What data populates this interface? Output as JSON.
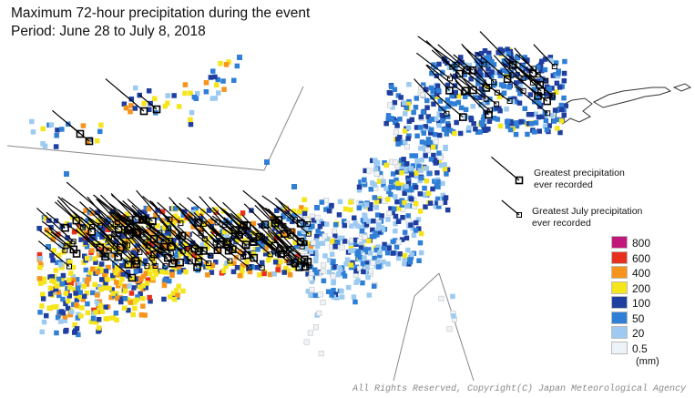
{
  "title_line1": "Maximum 72-hour precipitation during the event",
  "title_line2": "Period: June 28 to July 8, 2018",
  "marker_notes": {
    "greatest_line1": "Greatest precipitation",
    "greatest_line2": "ever recorded",
    "july_line1": "Greatest July precipitation",
    "july_line2": "ever recorded"
  },
  "legend": {
    "items": [
      {
        "label": "800",
        "color": "#c2177a"
      },
      {
        "label": "600",
        "color": "#e8301e"
      },
      {
        "label": "400",
        "color": "#f7941d"
      },
      {
        "label": "200",
        "color": "#f5e51b"
      },
      {
        "label": "100",
        "color": "#1f3fa0"
      },
      {
        "label": "50",
        "color": "#2f7fd6"
      },
      {
        "label": "20",
        "color": "#9ccaf0"
      },
      {
        "label": "0.5",
        "color": "#eef3f8"
      }
    ],
    "unit": "(mm)"
  },
  "copyright": "All Rights Reserved, Copyright(C) Japan Meteorological Agency"
}
